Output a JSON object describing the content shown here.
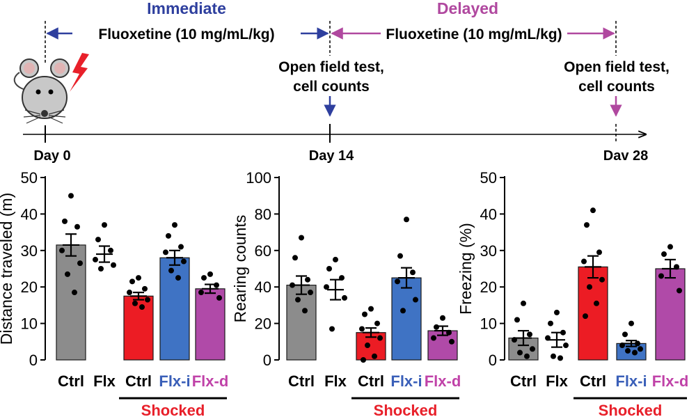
{
  "timeline": {
    "phase_immediate": "Immediate",
    "phase_delayed": "Delayed",
    "drug_immediate": "Fluoxetine (10 mg/mL/kg)",
    "drug_delayed": "Fluoxetine (10 mg/mL/kg)",
    "test_day14": [
      "Open field test,",
      "cell counts"
    ],
    "test_day28": [
      "Open field test,",
      "cell counts"
    ],
    "days": [
      "Day 0",
      "Day 14",
      "Dav 28"
    ],
    "colors": {
      "immediate": "#2e3f9e",
      "delayed": "#b0489f",
      "shock": "#e8202a",
      "mouse": "#c8c8c8"
    }
  },
  "group_label": "Shocked",
  "chart_data": [
    {
      "type": "bar",
      "ylabel": "Distance traveled (m)",
      "ylim": [
        0,
        50
      ],
      "yticks": [
        0,
        10,
        20,
        30,
        40,
        50
      ],
      "categories": [
        "Ctrl",
        "Flx",
        "Ctrl",
        "Flx-i",
        "Flx-d"
      ],
      "category_colors": [
        "#000000",
        "#000000",
        "#000000",
        "#3a5fb8",
        "#c042a8"
      ],
      "bar_colors": [
        "#8c8c8c",
        null,
        "#ec1c24",
        "#3f73c4",
        "#b04aa8"
      ],
      "values": [
        31.5,
        29,
        17.5,
        28,
        19.5
      ],
      "sem": [
        3,
        2.2,
        1,
        2,
        1.2
      ],
      "points": [
        [
          45,
          38,
          36.5,
          30,
          26.5,
          23.5,
          18.5
        ],
        [
          37,
          33,
          30,
          27.5,
          26,
          25
        ],
        [
          22.5,
          21.5,
          19.5,
          18.5,
          16.5,
          15.5,
          14.5
        ],
        [
          37,
          34,
          31,
          29.5,
          27,
          24.5,
          22.5
        ],
        [
          23.5,
          22.5,
          20.5,
          18.5,
          17
        ]
      ],
      "bracket": {
        "from": 2,
        "to": 4
      }
    },
    {
      "type": "bar",
      "ylabel": "Rearing counts",
      "ylim": [
        0,
        100
      ],
      "yticks": [
        0,
        20,
        40,
        60,
        80,
        100
      ],
      "categories": [
        "Ctrl",
        "Flx",
        "Ctrl",
        "Flx-i",
        "Flx-d"
      ],
      "category_colors": [
        "#000000",
        "#000000",
        "#000000",
        "#3a5fb8",
        "#c042a8"
      ],
      "bar_colors": [
        "#8c8c8c",
        null,
        "#ec1c24",
        "#3f73c4",
        "#b04aa8"
      ],
      "values": [
        41,
        38.5,
        15,
        45,
        16
      ],
      "sem": [
        5,
        5.5,
        2.5,
        5.5,
        2.5
      ],
      "points": [
        [
          67,
          56,
          44,
          41,
          37,
          33,
          27
        ],
        [
          55,
          50,
          45,
          40,
          34,
          17
        ],
        [
          28,
          25,
          20,
          17,
          12,
          8,
          2,
          0
        ],
        [
          77,
          57,
          48,
          43,
          33,
          27
        ],
        [
          23,
          18,
          15,
          12,
          10
        ]
      ],
      "bracket": {
        "from": 2,
        "to": 4
      }
    },
    {
      "type": "bar",
      "ylabel": "Freezing (%)",
      "ylim": [
        0,
        50
      ],
      "yticks": [
        0,
        10,
        20,
        30,
        40,
        50
      ],
      "categories": [
        "Ctrl",
        "Flx",
        "Ctrl",
        "Flx-i",
        "Flx-d"
      ],
      "category_colors": [
        "#000000",
        "#000000",
        "#000000",
        "#3a5fb8",
        "#c042a8"
      ],
      "bar_colors": [
        "#8c8c8c",
        null,
        "#ec1c24",
        "#3f73c4",
        "#b04aa8"
      ],
      "values": [
        6,
        5.5,
        25.5,
        4.5,
        25
      ],
      "sem": [
        2,
        2,
        3,
        0.8,
        2.5
      ],
      "points": [
        [
          15.5,
          11,
          7,
          5.5,
          3,
          2,
          1
        ],
        [
          13,
          10,
          7.5,
          6,
          4,
          1,
          0.5
        ],
        [
          41,
          37,
          29.5,
          27,
          22,
          20,
          15.5,
          12
        ],
        [
          10,
          7,
          4.5,
          4,
          3,
          2.5,
          2
        ],
        [
          31,
          29,
          25.5,
          23,
          19
        ]
      ],
      "bracket": {
        "from": 2,
        "to": 4
      }
    }
  ]
}
